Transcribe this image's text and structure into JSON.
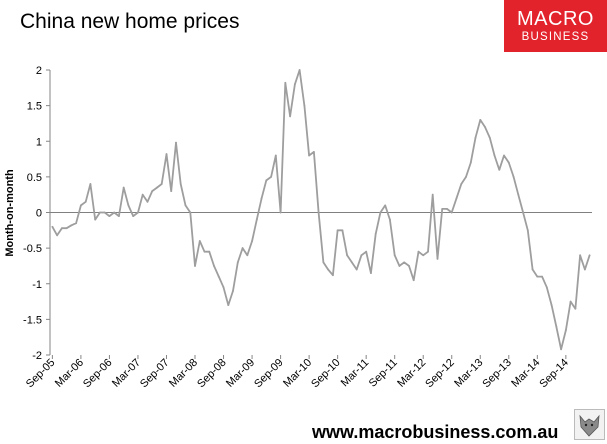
{
  "page": {
    "title": "China new home prices",
    "logo": {
      "line1": "MACRO",
      "line2": "BUSINESS"
    },
    "footer_url": "www.macrobusiness.com.au",
    "colors": {
      "line": "#9e9e9e",
      "zero_line": "#808080",
      "axis": "#868686",
      "logo_bg": "#e3232c"
    },
    "mascot_icon": "wolf-head-icon"
  },
  "chart_data": {
    "type": "line",
    "title": "China new home prices",
    "xlabel": "",
    "ylabel": "Month-on-month",
    "ylim": [
      -2,
      2
    ],
    "yticks": [
      -2,
      -1.5,
      -1,
      -0.5,
      0,
      0.5,
      1,
      1.5,
      2
    ],
    "ytick_labels": [
      "-2",
      "-1.5",
      "-1",
      "-0.5",
      "0",
      "0.5",
      "1",
      "1.5",
      "2"
    ],
    "grid": false,
    "legend": "none",
    "xtick_labels": [
      "Sep-05",
      "Mar-06",
      "Sep-06",
      "Mar-07",
      "Sep-07",
      "Mar-08",
      "Sep-08",
      "Mar-09",
      "Sep-09",
      "Mar-10",
      "Sep-10",
      "Mar-11",
      "Sep-11",
      "Mar-12",
      "Sep-12",
      "Mar-13",
      "Sep-13",
      "Mar-14",
      "Sep-14"
    ],
    "x_start": "Sep-05",
    "x_end": "Dec-14",
    "series": [
      {
        "values": [
          -0.2,
          -0.32,
          -0.22,
          -0.22,
          -0.18,
          -0.15,
          0.1,
          0.15,
          0.4,
          -0.1,
          0.0,
          0.0,
          -0.05,
          0.0,
          -0.05,
          0.35,
          0.1,
          -0.05,
          0.0,
          0.25,
          0.15,
          0.3,
          0.35,
          0.4,
          0.82,
          0.3,
          0.98,
          0.4,
          0.1,
          0.0,
          -0.75,
          -0.4,
          -0.55,
          -0.55,
          -0.75,
          -0.9,
          -1.05,
          -1.3,
          -1.1,
          -0.7,
          -0.5,
          -0.6,
          -0.4,
          -0.1,
          0.2,
          0.45,
          0.5,
          0.8,
          0.0,
          1.82,
          1.35,
          1.8,
          2.0,
          1.5,
          0.8,
          0.85,
          0.0,
          -0.7,
          -0.8,
          -0.88,
          -0.25,
          -0.25,
          -0.6,
          -0.7,
          -0.8,
          -0.6,
          -0.55,
          -0.85,
          -0.3,
          0.0,
          0.1,
          -0.1,
          -0.6,
          -0.75,
          -0.7,
          -0.75,
          -0.95,
          -0.55,
          -0.6,
          -0.55,
          0.25,
          -0.65,
          0.05,
          0.05,
          0.0,
          0.2,
          0.4,
          0.5,
          0.7,
          1.05,
          1.3,
          1.2,
          1.05,
          0.8,
          0.6,
          0.8,
          0.7,
          0.5,
          0.25,
          0.0,
          -0.25,
          -0.8,
          -0.9,
          -0.9,
          -1.05,
          -1.3,
          -1.6,
          -1.92,
          -1.65,
          -1.25,
          -1.35,
          -0.6,
          -0.8,
          -0.6
        ]
      }
    ]
  }
}
